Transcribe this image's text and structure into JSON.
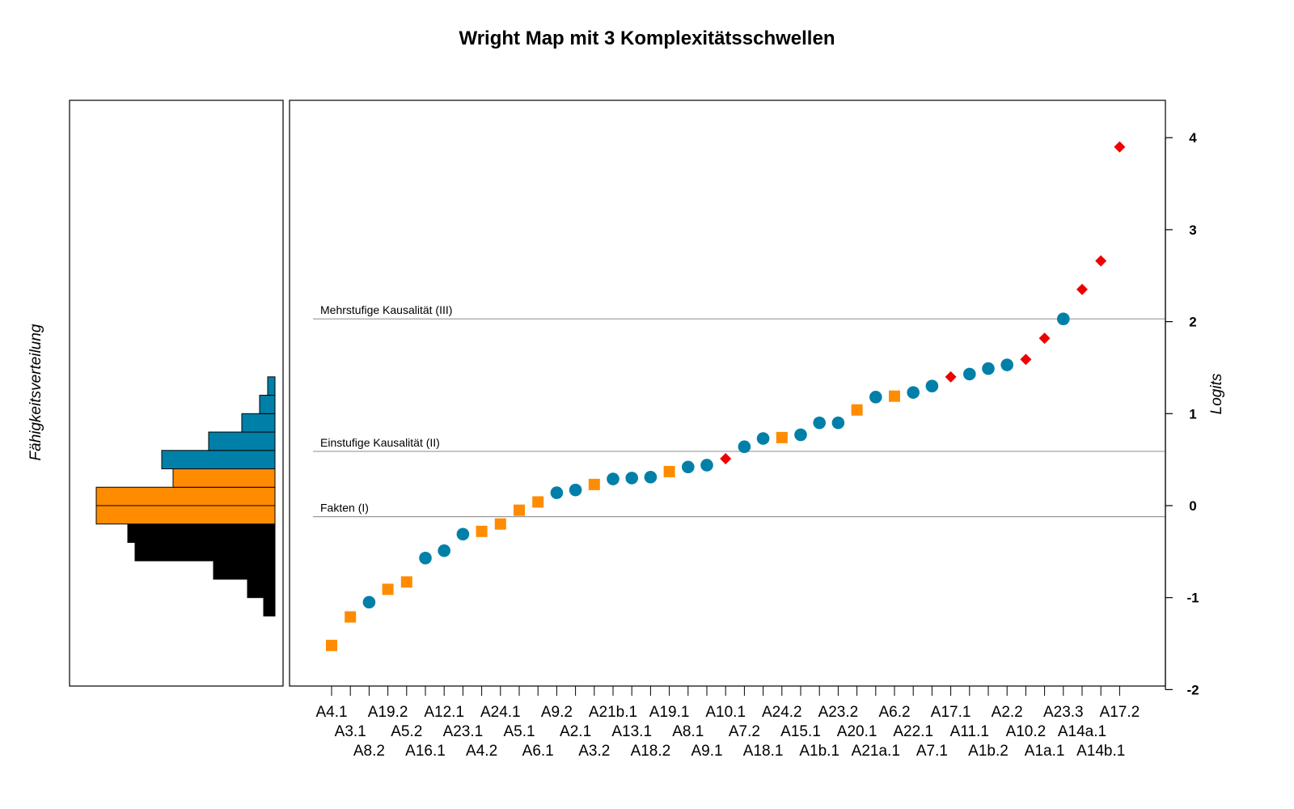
{
  "chart_data": {
    "type": "scatter",
    "title": "Wright Map mit 3 Komplexitätsschwellen",
    "ylabel": "Logits",
    "left_panel_label": "Fähigkeitsverteilung",
    "ylim": [
      -2,
      4.3
    ],
    "y_ticks": [
      -2,
      -1,
      0,
      1,
      2,
      3,
      4
    ],
    "grid": false,
    "thresholds": [
      {
        "label": "Mehrstufige Kausalität (III)",
        "value": 2.03
      },
      {
        "label": "Einstufige Kausalität (II)",
        "value": 0.59
      },
      {
        "label": "Fakten (I)",
        "value": -0.12
      }
    ],
    "colors": {
      "level1": "#FF8C00",
      "level2": "#0080A8",
      "level3": "#EE0000",
      "lowest": "#000000"
    },
    "items": [
      {
        "label": "A4.1",
        "value": -1.52,
        "level": 1
      },
      {
        "label": "A3.1",
        "value": -1.21,
        "level": 1
      },
      {
        "label": "A8.2",
        "value": -1.05,
        "level": 2
      },
      {
        "label": "A19.2",
        "value": -0.91,
        "level": 1
      },
      {
        "label": "A5.2",
        "value": -0.83,
        "level": 1
      },
      {
        "label": "A16.1",
        "value": -0.57,
        "level": 2
      },
      {
        "label": "A12.1",
        "value": -0.49,
        "level": 2
      },
      {
        "label": "A23.1",
        "value": -0.31,
        "level": 2
      },
      {
        "label": "A4.2",
        "value": -0.28,
        "level": 1
      },
      {
        "label": "A24.1",
        "value": -0.2,
        "level": 1
      },
      {
        "label": "A5.1",
        "value": -0.05,
        "level": 1
      },
      {
        "label": "A6.1",
        "value": 0.04,
        "level": 1
      },
      {
        "label": "A9.2",
        "value": 0.14,
        "level": 2
      },
      {
        "label": "A2.1",
        "value": 0.17,
        "level": 2
      },
      {
        "label": "A3.2",
        "value": 0.23,
        "level": 1
      },
      {
        "label": "A21b.1",
        "value": 0.29,
        "level": 2
      },
      {
        "label": "A13.1",
        "value": 0.3,
        "level": 2
      },
      {
        "label": "A18.2",
        "value": 0.31,
        "level": 2
      },
      {
        "label": "A19.1",
        "value": 0.37,
        "level": 1
      },
      {
        "label": "A8.1",
        "value": 0.42,
        "level": 2
      },
      {
        "label": "A9.1",
        "value": 0.44,
        "level": 2
      },
      {
        "label": "A10.1",
        "value": 0.51,
        "level": 3
      },
      {
        "label": "A7.2",
        "value": 0.64,
        "level": 2
      },
      {
        "label": "A18.1",
        "value": 0.73,
        "level": 2
      },
      {
        "label": "A24.2",
        "value": 0.74,
        "level": 1
      },
      {
        "label": "A15.1",
        "value": 0.77,
        "level": 2
      },
      {
        "label": "A1b.1",
        "value": 0.9,
        "level": 2
      },
      {
        "label": "A23.2",
        "value": 0.9,
        "level": 2
      },
      {
        "label": "A20.1",
        "value": 1.04,
        "level": 1
      },
      {
        "label": "A21a.1",
        "value": 1.18,
        "level": 2
      },
      {
        "label": "A6.2",
        "value": 1.19,
        "level": 1
      },
      {
        "label": "A22.1",
        "value": 1.23,
        "level": 2
      },
      {
        "label": "A7.1",
        "value": 1.3,
        "level": 2
      },
      {
        "label": "A17.1",
        "value": 1.4,
        "level": 3
      },
      {
        "label": "A11.1",
        "value": 1.43,
        "level": 2
      },
      {
        "label": "A1b.2",
        "value": 1.49,
        "level": 2
      },
      {
        "label": "A2.2",
        "value": 1.53,
        "level": 2
      },
      {
        "label": "A10.2",
        "value": 1.59,
        "level": 3
      },
      {
        "label": "A1a.1",
        "value": 1.82,
        "level": 3
      },
      {
        "label": "A23.3",
        "value": 2.03,
        "level": 2
      },
      {
        "label": "A14a.1",
        "value": 2.35,
        "level": 3
      },
      {
        "label": "A14b.1",
        "value": 2.66,
        "level": 3
      },
      {
        "label": "A17.2",
        "value": 3.9,
        "level": 3
      }
    ],
    "histogram": [
      {
        "from": -1.2,
        "to": -1.0,
        "count": 0.14,
        "level": 0
      },
      {
        "from": -1.0,
        "to": -0.8,
        "count": 0.34,
        "level": 0
      },
      {
        "from": -0.8,
        "to": -0.6,
        "count": 0.76,
        "level": 0
      },
      {
        "from": -0.6,
        "to": -0.4,
        "count": 1.73,
        "level": 0
      },
      {
        "from": -0.4,
        "to": -0.2,
        "count": 1.82,
        "level": 0
      },
      {
        "from": -0.2,
        "to": 0.0,
        "count": 2.21,
        "level": 1
      },
      {
        "from": 0.0,
        "to": 0.2,
        "count": 2.21,
        "level": 1
      },
      {
        "from": 0.2,
        "to": 0.4,
        "count": 1.26,
        "level": 1
      },
      {
        "from": 0.4,
        "to": 0.6,
        "count": 1.4,
        "level": 2
      },
      {
        "from": 0.6,
        "to": 0.8,
        "count": 0.82,
        "level": 2
      },
      {
        "from": 0.8,
        "to": 1.0,
        "count": 0.41,
        "level": 2
      },
      {
        "from": 1.0,
        "to": 1.2,
        "count": 0.19,
        "level": 2
      },
      {
        "from": 1.2,
        "to": 1.4,
        "count": 0.09,
        "level": 2
      }
    ]
  }
}
